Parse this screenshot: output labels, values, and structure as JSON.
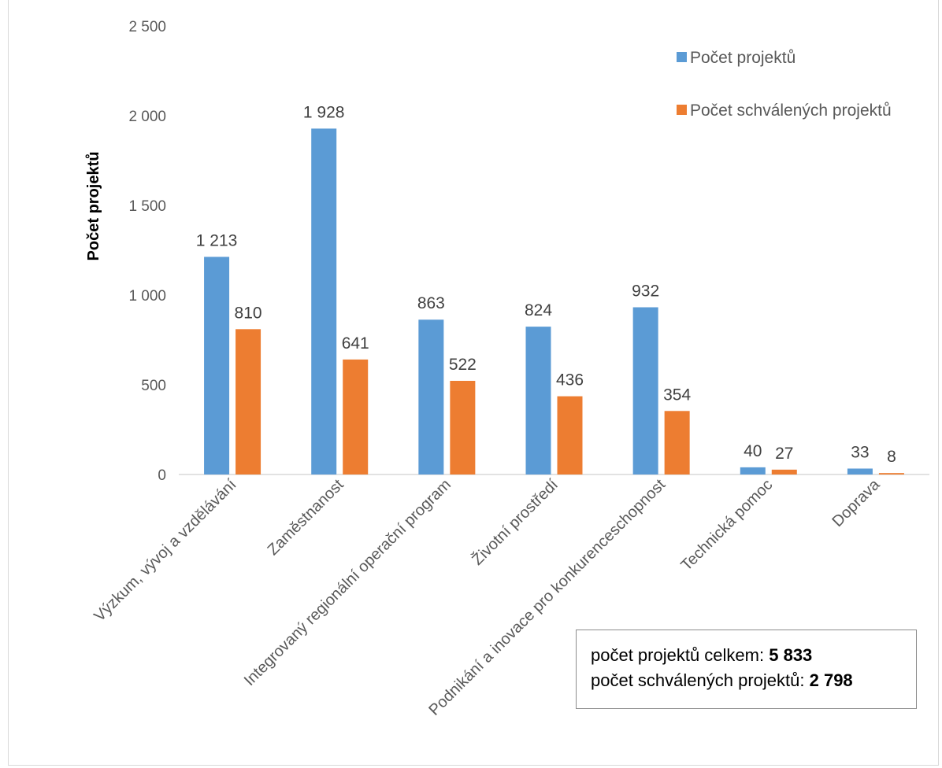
{
  "chart_data": {
    "type": "bar",
    "title": "",
    "xlabel": "",
    "ylabel": "Počet projektů",
    "ylim": [
      0,
      2500
    ],
    "yticks": [
      "0",
      "500",
      "1 000",
      "1 500",
      "2 000",
      "2 500"
    ],
    "ytick_values": [
      0,
      500,
      1000,
      1500,
      2000,
      2500
    ],
    "grid": false,
    "legend_position": "top-right",
    "categories": [
      "Výzkum, vývoj a vzdělávání",
      "Zaměstnanost",
      "Integrovaný regionální operační program",
      "Životní prostředí",
      "Podnikání a inovace pro konkurenceschopnost",
      "Technická pomoc",
      "Doprava"
    ],
    "series": [
      {
        "name": "Počet projektů",
        "color": "#5B9BD5",
        "values": [
          1213,
          1928,
          863,
          824,
          932,
          40,
          33
        ],
        "labels": [
          "1 213",
          "1 928",
          "863",
          "824",
          "932",
          "40",
          "33"
        ]
      },
      {
        "name": "Počet schválených projektů",
        "color": "#ED7D31",
        "values": [
          810,
          641,
          522,
          436,
          354,
          27,
          8
        ],
        "labels": [
          "810",
          "641",
          "522",
          "436",
          "354",
          "27",
          "8"
        ]
      }
    ]
  },
  "summary": {
    "total_label": "počet projektů celkem: ",
    "total_value": "5 833",
    "approved_label": "počet schválených projektů: ",
    "approved_value": "2 798"
  }
}
